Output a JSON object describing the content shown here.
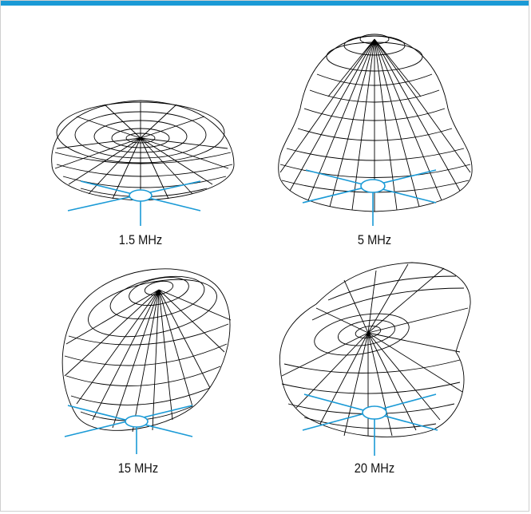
{
  "colors": {
    "accent": "#1a9ad6",
    "mesh": "#000000",
    "antenna": "#1a9ad6"
  },
  "patterns": [
    {
      "label": "1.5 MHz",
      "shape": "torus-squashed"
    },
    {
      "label": "5 MHz",
      "shape": "bell"
    },
    {
      "label": "15 MHz",
      "shape": "tilted-egg"
    },
    {
      "label": "20 MHz",
      "shape": "saddle-lobe"
    }
  ]
}
